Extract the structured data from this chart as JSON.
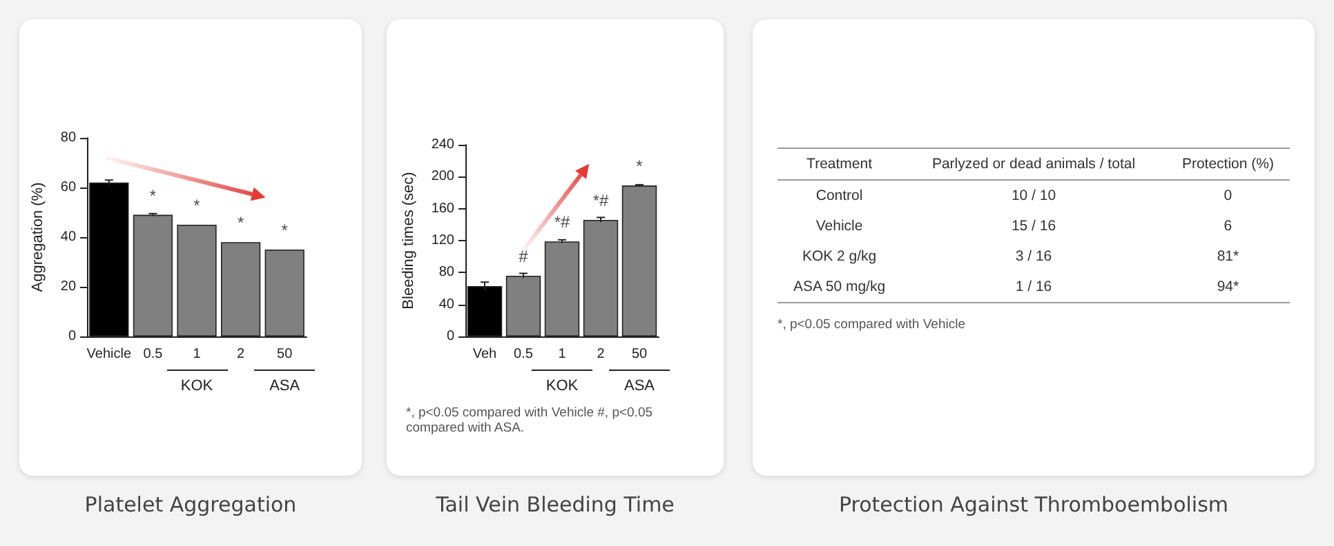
{
  "chart_data": [
    {
      "type": "bar",
      "title": "Platelet Aggregation",
      "ylabel": "Aggregation (%)",
      "categories": [
        "Vehicle",
        "0.5",
        "1",
        "2",
        "50"
      ],
      "values": [
        62,
        49,
        45,
        38,
        35
      ],
      "colors": [
        "#000000",
        "#808080",
        "#808080",
        "#808080",
        "#808080"
      ],
      "errors": [
        1,
        0.5,
        null,
        null,
        null
      ],
      "ylim": [
        0,
        80
      ],
      "yticks": [
        0,
        20,
        40,
        60,
        80
      ],
      "annotations": [
        {
          "text": "*",
          "x": "0.5",
          "y": 49
        },
        {
          "text": "*",
          "x": "1",
          "y": 45
        },
        {
          "text": "*",
          "x": "2",
          "y": 38
        },
        {
          "text": "*",
          "x": "50",
          "y": 35
        },
        "KOK",
        "ASA"
      ]
    },
    {
      "type": "bar",
      "title": "Tail Vein Bleeding Time",
      "ylabel": "Bleeding times (sec)",
      "categories": [
        "Veh",
        "0.5",
        "1",
        "2",
        "50"
      ],
      "values": [
        63,
        76,
        119,
        146,
        189
      ],
      "colors": [
        "#000000",
        "#808080",
        "#808080",
        "#808080",
        "#808080"
      ],
      "errors": [
        5,
        3,
        2,
        3,
        1
      ],
      "ylim": [
        0,
        240
      ],
      "yticks": [
        0,
        40,
        80,
        120,
        160,
        200,
        240
      ],
      "annotations": [
        {
          "text": "#",
          "x": "0.5",
          "y": 76
        },
        {
          "text": "*#",
          "x": "1",
          "y": 119
        },
        {
          "text": "*#",
          "x": "2",
          "y": 146
        },
        {
          "text": "*",
          "x": "50",
          "y": 189
        },
        "KOK",
        "ASA",
        "*, p<0.05 compared with Vehicle #, p<0.05 compared with ASA."
      ]
    },
    {
      "type": "other",
      "title": "Protection Against Thromboembolism",
      "annotations": [
        "Treatment",
        "Parlyzed or dead animals / total",
        "Protection (%)",
        "Control",
        "10 / 10",
        "0",
        "Vehicle",
        "15 / 16",
        "6",
        "KOK 2 g/kg",
        "3 / 16",
        "81*",
        "ASA 50 mg/kg",
        "1 / 16",
        "94*",
        "*, p<0.05 compared with Vehicle"
      ]
    }
  ]
}
